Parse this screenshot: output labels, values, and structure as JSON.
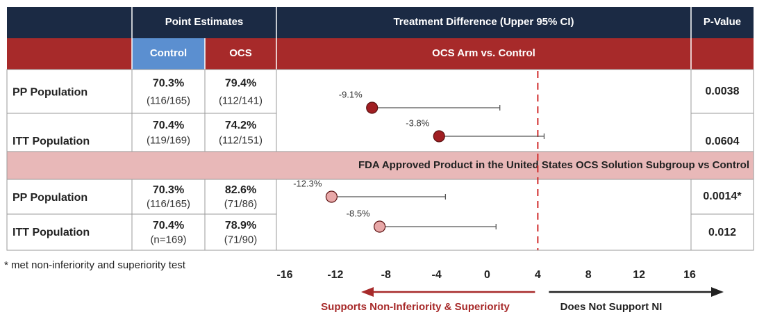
{
  "table": {
    "headers": [
      "Point Estimates",
      "Treatment Difference (Upper 95% CI)",
      "P-Value"
    ],
    "subheaders": [
      "Control",
      "OCS",
      "OCS Arm vs. Control"
    ],
    "rows": [
      {
        "label": "PP Population",
        "control": [
          "70.3%",
          "(116/165)"
        ],
        "ocs": [
          "79.4%",
          "(112/141)"
        ],
        "p": "0.0038"
      },
      {
        "label": "ITT Population",
        "control": [
          "70.4%",
          "(119/169)"
        ],
        "ocs": [
          "74.2%",
          "(112/151)"
        ],
        "p": "0.0604"
      },
      {
        "label": "PP Population",
        "control": [
          "70.3%",
          "(116/165)"
        ],
        "ocs": [
          "82.6%",
          "(71/86)"
        ],
        "p": "0.0014*"
      },
      {
        "label": "ITT Population",
        "control": [
          "70.4%",
          "(n=169)"
        ],
        "ocs": [
          "78.9%",
          "(71/90)"
        ],
        "p": "0.012"
      }
    ],
    "subgroup_title": "FDA Approved Product in the United States OCS Solution Subgroup vs Control",
    "footnote": "* met non-inferiority and superiority test"
  },
  "chart_data": {
    "type": "forest",
    "values": [
      -9.1,
      -3.8,
      -12.3,
      -8.5
    ],
    "value_labels": [
      "-9.1%",
      "-3.8%",
      "-12.3%",
      "-8.5%"
    ],
    "upper": [
      1.0,
      4.5,
      -3.3,
      0.7
    ],
    "colors": [
      "#a01e22",
      "#a01e22",
      "#e8a8a8",
      "#e8a8a8"
    ],
    "xlim": [
      -16,
      16
    ],
    "xticks": [
      -16,
      -12,
      -8,
      -4,
      0,
      4,
      8,
      12,
      16
    ],
    "margin": 4,
    "left_label": "Supports Non-Inferiority & Superiority",
    "right_label": "Does Not Support NI"
  }
}
